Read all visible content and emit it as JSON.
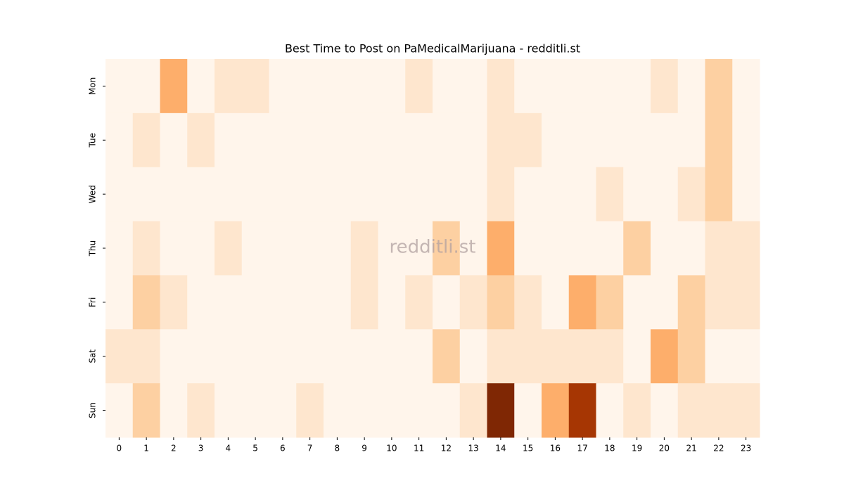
{
  "chart_data": {
    "type": "heatmap",
    "title": "Best Time to Post on PaMedicalMarijuana - redditli.st",
    "watermark": "redditli.st",
    "x": [
      0,
      1,
      2,
      3,
      4,
      5,
      6,
      7,
      8,
      9,
      10,
      11,
      12,
      13,
      14,
      15,
      16,
      17,
      18,
      19,
      20,
      21,
      22,
      23
    ],
    "categories": [
      "Mon",
      "Tue",
      "Wed",
      "Thu",
      "Fri",
      "Sat",
      "Sun"
    ],
    "values": [
      [
        0,
        0,
        3,
        0,
        1,
        1,
        0,
        0,
        0,
        0,
        0,
        1,
        0,
        0,
        1,
        0,
        0,
        0,
        0,
        0,
        1,
        0,
        2,
        0
      ],
      [
        0,
        1,
        0,
        1,
        0,
        0,
        0,
        0,
        0,
        0,
        0,
        0,
        0,
        0,
        1,
        1,
        0,
        0,
        0,
        0,
        0,
        0,
        2,
        0
      ],
      [
        0,
        0,
        0,
        0,
        0,
        0,
        0,
        0,
        0,
        0,
        0,
        0,
        0,
        0,
        1,
        0,
        0,
        0,
        1,
        0,
        0,
        1,
        2,
        0
      ],
      [
        0,
        1,
        0,
        0,
        1,
        0,
        0,
        0,
        0,
        1,
        0,
        0,
        2,
        0,
        3,
        0,
        0,
        0,
        0,
        2,
        0,
        0,
        1,
        1
      ],
      [
        0,
        2,
        1,
        0,
        0,
        0,
        0,
        0,
        0,
        1,
        0,
        1,
        0,
        1,
        2,
        1,
        0,
        3,
        2,
        0,
        0,
        2,
        1,
        1
      ],
      [
        1,
        1,
        0,
        0,
        0,
        0,
        0,
        0,
        0,
        0,
        0,
        0,
        2,
        0,
        1,
        1,
        1,
        1,
        1,
        0,
        3,
        2,
        0,
        0
      ],
      [
        0,
        2,
        0,
        1,
        0,
        0,
        0,
        1,
        0,
        0,
        0,
        0,
        0,
        1,
        8,
        0,
        3,
        7,
        0,
        1,
        0,
        1,
        1,
        1
      ]
    ],
    "clim": [
      0,
      8
    ],
    "colorscale": [
      "#fff5eb",
      "#fee6ce",
      "#fdd0a2",
      "#fdae6b",
      "#fd8d3c",
      "#f16913",
      "#d94801",
      "#a63603",
      "#7f2704"
    ]
  }
}
